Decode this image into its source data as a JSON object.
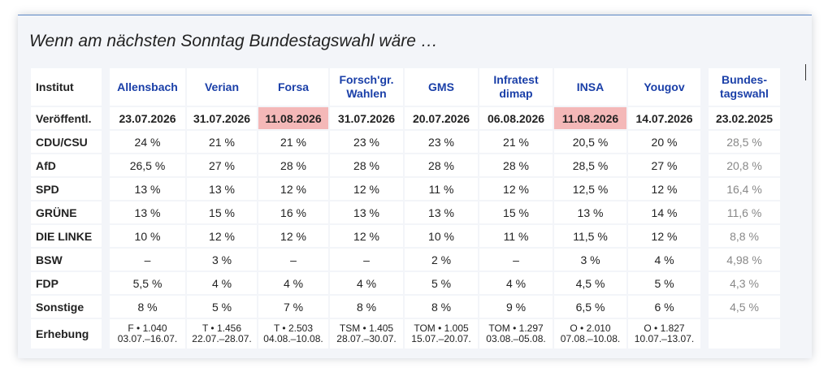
{
  "title": "Wenn am nächsten Sonntag Bundestagswahl wäre …",
  "header": {
    "label": "Institut",
    "institutes": [
      "Allensbach",
      "Verian",
      "Forsa",
      "Forsch'gr. Wahlen",
      "GMS",
      "Infratest dimap",
      "INSA",
      "Yougov"
    ],
    "election": "Bundes-tagswahl"
  },
  "published": {
    "label": "Veröffentl.",
    "dates": [
      "23.07.2026",
      "31.07.2026",
      "11.08.2026",
      "31.07.2026",
      "20.07.2026",
      "06.08.2026",
      "11.08.2026",
      "14.07.2026"
    ],
    "election_date": "23.02.2025",
    "highlight_color": "#f4b8b8"
  },
  "parties": [
    {
      "name": "CDU/CSU",
      "values": [
        "24 %",
        "21 %",
        "21 %",
        "23 %",
        "23 %",
        "21 %",
        "20,5 %",
        "20 %"
      ],
      "election": "28,5 %"
    },
    {
      "name": "AfD",
      "values": [
        "26,5 %",
        "27 %",
        "28 %",
        "28 %",
        "28 %",
        "28 %",
        "28,5 %",
        "27 %"
      ],
      "election": "20,8 %"
    },
    {
      "name": "SPD",
      "values": [
        "13 %",
        "13 %",
        "12 %",
        "12 %",
        "11 %",
        "12 %",
        "12,5 %",
        "12 %"
      ],
      "election": "16,4 %"
    },
    {
      "name": "GRÜNE",
      "values": [
        "13 %",
        "15 %",
        "16 %",
        "13 %",
        "13 %",
        "15 %",
        "13 %",
        "14 %"
      ],
      "election": "11,6 %"
    },
    {
      "name": "DIE LINKE",
      "values": [
        "10 %",
        "12 %",
        "12 %",
        "12 %",
        "10 %",
        "11 %",
        "11,5 %",
        "12 %"
      ],
      "election": "8,8 %"
    },
    {
      "name": "BSW",
      "values": [
        "–",
        "3 %",
        "–",
        "–",
        "2 %",
        "–",
        "3 %",
        "4 %"
      ],
      "election": "4,98 %"
    },
    {
      "name": "FDP",
      "values": [
        "5,5 %",
        "4 %",
        "4 %",
        "4 %",
        "5 %",
        "4 %",
        "4,5 %",
        "5 %"
      ],
      "election": "4,3 %"
    },
    {
      "name": "Sonstige",
      "values": [
        "8 %",
        "5 %",
        "7 %",
        "8 %",
        "8 %",
        "9 %",
        "6,5 %",
        "6 %"
      ],
      "election": "4,5 %"
    }
  ],
  "survey": {
    "label": "Erhebung",
    "methods": [
      "F • 1.040",
      "T • 1.456",
      "T • 2.503",
      "TSM • 1.405",
      "TOM • 1.005",
      "TOM • 1.297",
      "O • 2.010",
      "O • 1.827"
    ],
    "periods": [
      "03.07.–16.07.",
      "22.07.–28.07.",
      "04.08.–10.08.",
      "28.07.–30.07.",
      "15.07.–20.07.",
      "03.08.–05.08.",
      "07.08.–10.08.",
      "10.07.–13.07."
    ]
  }
}
